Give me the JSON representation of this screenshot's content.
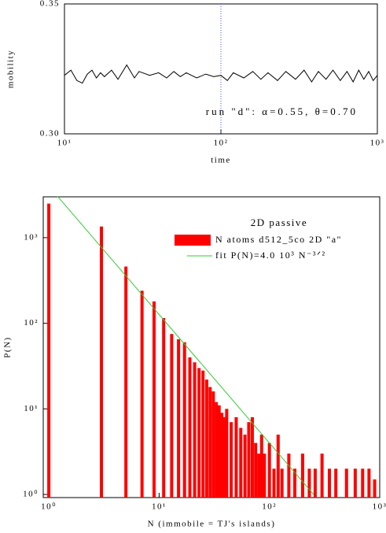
{
  "chart_data": [
    {
      "type": "line",
      "xlabel": "time",
      "ylabel": "mobility",
      "annotation": "run \"d\":  α=0.55,  θ=0.70",
      "xscale": "log",
      "xlim": [
        10,
        1000
      ],
      "ylim": [
        0.3,
        0.35
      ],
      "xticks": [
        {
          "value": 10,
          "label": "10¹"
        },
        {
          "value": 100,
          "label": "10²"
        },
        {
          "value": 1000,
          "label": "10³"
        }
      ],
      "yticks": [
        {
          "value": 0.3,
          "label": "0.30"
        },
        0.35
      ],
      "vline": 100,
      "vline_color": "#3355ff",
      "series": [
        {
          "color": "#000000",
          "x": [
            10,
            11,
            12,
            13,
            14,
            15,
            16,
            17,
            18,
            20,
            22,
            25,
            28,
            30,
            35,
            40,
            45,
            50,
            55,
            60,
            70,
            80,
            90,
            100,
            110,
            120,
            140,
            160,
            180,
            200,
            230,
            260,
            300,
            340,
            380,
            420,
            470,
            520,
            580,
            640,
            700,
            760,
            820,
            880,
            940,
            1000
          ],
          "values": [
            0.3225,
            0.3245,
            0.3205,
            0.3195,
            0.323,
            0.3245,
            0.3215,
            0.3235,
            0.322,
            0.3245,
            0.321,
            0.3265,
            0.3215,
            0.324,
            0.3225,
            0.3235,
            0.3215,
            0.324,
            0.322,
            0.3235,
            0.3215,
            0.323,
            0.322,
            0.3225,
            0.3205,
            0.3235,
            0.3215,
            0.324,
            0.321,
            0.3235,
            0.3205,
            0.324,
            0.321,
            0.3245,
            0.32,
            0.324,
            0.321,
            0.3245,
            0.3205,
            0.324,
            0.32,
            0.3245,
            0.321,
            0.324,
            0.3205,
            0.3225
          ]
        }
      ]
    },
    {
      "type": "bar",
      "xlabel": "N (immobile = TJ's islands)",
      "ylabel": "P(N)",
      "legend_title": "2D passive",
      "legend": "upper right",
      "xscale": "log",
      "yscale": "log",
      "xlim": [
        0.89,
        1000
      ],
      "ylim": [
        0.92,
        3000
      ],
      "xticks": [
        {
          "value": 1,
          "label": "10⁰"
        },
        {
          "value": 10,
          "label": "10¹"
        },
        {
          "value": 100,
          "label": "10²"
        },
        {
          "value": 1000,
          "label": "10³"
        }
      ],
      "yticks": [
        {
          "value": 1,
          "label": "10⁰"
        },
        {
          "value": 10,
          "label": "10¹"
        },
        {
          "value": 100,
          "label": "10²"
        },
        {
          "value": 1000,
          "label": "10³"
        }
      ],
      "series": [
        {
          "name": "N atoms d512_5co 2D \"a\"",
          "color": "#ff0000",
          "x": [
            1,
            3,
            5,
            7,
            9,
            11,
            13,
            15,
            17,
            19,
            21,
            23,
            25,
            27,
            29,
            31,
            33,
            35,
            37,
            39,
            41,
            45,
            50,
            55,
            60,
            65,
            70,
            75,
            80,
            85,
            90,
            100,
            110,
            120,
            130,
            150,
            170,
            200,
            230,
            260,
            300,
            350,
            400,
            500,
            600,
            700,
            800,
            900
          ],
          "values": [
            2500,
            1350,
            460,
            240,
            180,
            115,
            75,
            65,
            60,
            40,
            35,
            30,
            28,
            22,
            18,
            16,
            12,
            11,
            9,
            8,
            10,
            7,
            8,
            6,
            5,
            7,
            8,
            4,
            3,
            5,
            3,
            4,
            2,
            5,
            2,
            3,
            2,
            3,
            2,
            2,
            3,
            2,
            2,
            2,
            2,
            2,
            2,
            1.5
          ]
        },
        {
          "name": "fit P(N)=4.0 10³ N⁻³ᐟ²",
          "type": "line",
          "color": "#33cc33",
          "x": [
            1.2,
            252
          ],
          "values": [
            3043,
            1
          ]
        }
      ]
    }
  ]
}
